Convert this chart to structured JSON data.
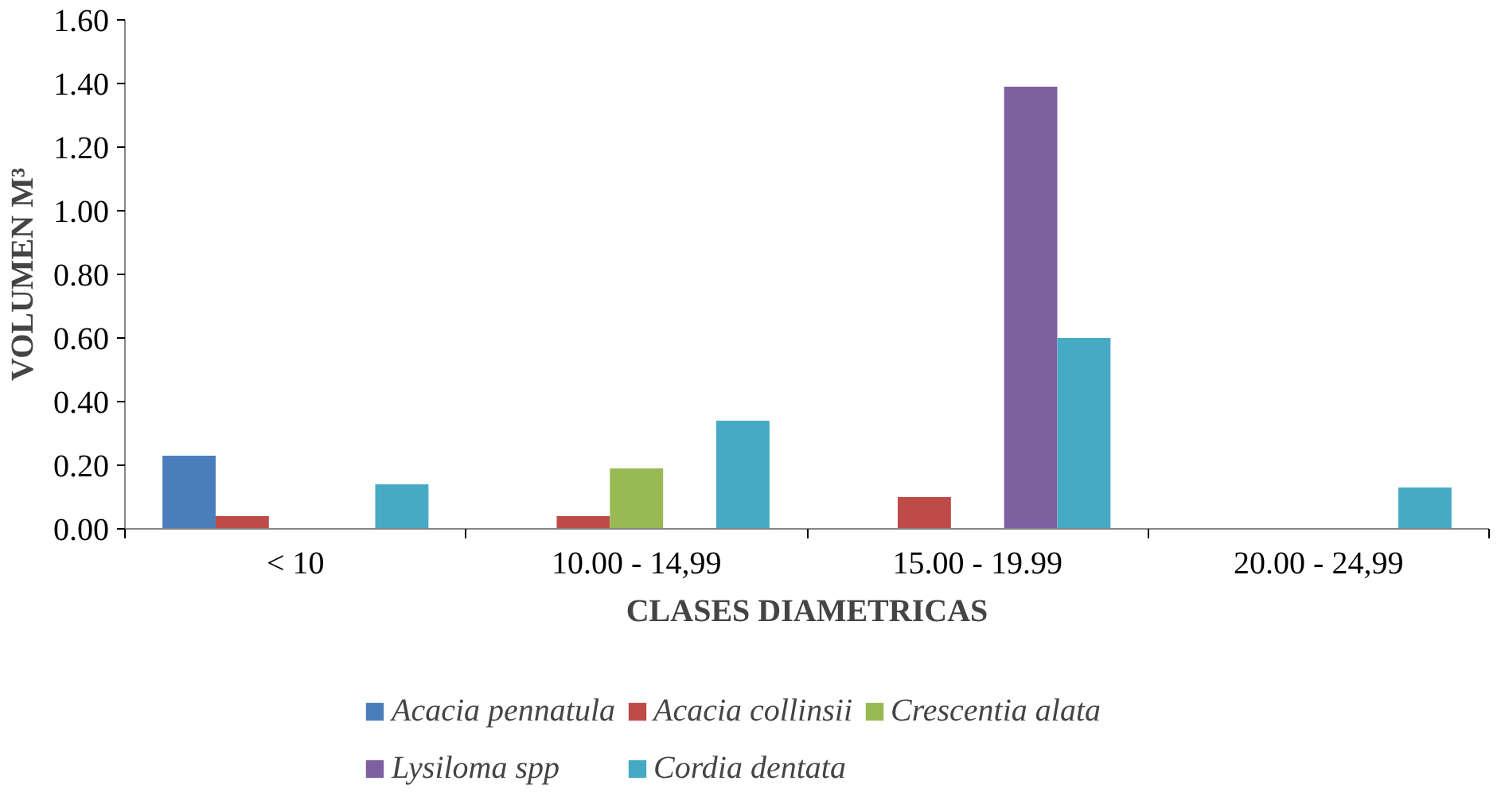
{
  "chart_data": {
    "type": "bar",
    "xlabel": "CLASES DIAMETRICAS",
    "ylabel": "VOLUMEN M³",
    "categories": [
      "< 10",
      "10.00 - 14,99",
      "15.00 - 19.99",
      "20.00 - 24,99"
    ],
    "series": [
      {
        "name": "Acacia pennatula",
        "color": "#4a7ebb",
        "values": [
          0.23,
          0,
          0,
          0
        ]
      },
      {
        "name": "Acacia collinsii",
        "color": "#be4b48",
        "values": [
          0.04,
          0.04,
          0.1,
          0
        ]
      },
      {
        "name": "Crescentia alata",
        "color": "#98b954",
        "values": [
          0,
          0.19,
          0,
          0
        ]
      },
      {
        "name": "Lysiloma spp",
        "color": "#7d60a0",
        "values": [
          0,
          0,
          1.39,
          0
        ]
      },
      {
        "name": "Cordia dentata",
        "color": "#46aac5",
        "values": [
          0.14,
          0.34,
          0.6,
          0.13
        ]
      }
    ],
    "ylim": [
      0,
      1.6
    ],
    "yticks": [
      {
        "value": 0,
        "label": "0.00"
      },
      {
        "value": 0.2,
        "label": "0.20"
      },
      {
        "value": 0.4,
        "label": "0.40"
      },
      {
        "value": 0.6,
        "label": "0.60"
      },
      {
        "value": 0.8,
        "label": "0.80"
      },
      {
        "value": 1.0,
        "label": "1.00"
      },
      {
        "value": 1.2,
        "label": "1.20"
      },
      {
        "value": 1.4,
        "label": "1.40"
      },
      {
        "value": 1.6,
        "label": "1.60"
      }
    ],
    "grid": false,
    "legend": "bottom"
  }
}
